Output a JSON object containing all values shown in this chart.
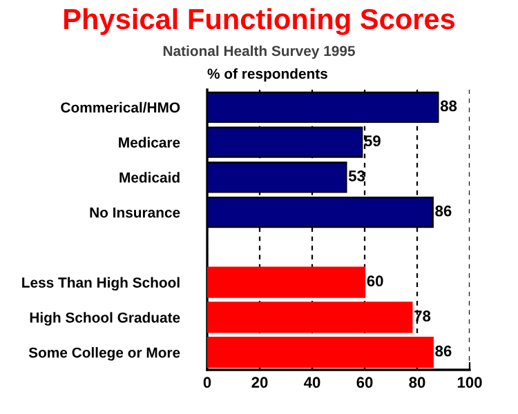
{
  "chart_data": {
    "type": "bar",
    "orientation": "horizontal",
    "title": "Physical Functioning Scores",
    "subtitle": "National Health Survey 1995",
    "xlabel": "% of respondents",
    "categories": [
      "Commerical/HMO",
      "Medicare",
      "Medicaid",
      "No Insurance",
      null,
      "Less Than High School",
      "High School Graduate",
      "Some College or More"
    ],
    "values": [
      88,
      59,
      53,
      86,
      null,
      60,
      78,
      86
    ],
    "colors": [
      "#000080",
      "#000080",
      "#000080",
      "#000080",
      "#000080",
      "#ff0000",
      "#ff0000",
      "#ff0000"
    ],
    "xlim": [
      0,
      100
    ],
    "xticks": [
      0,
      20,
      40,
      60,
      80,
      100
    ],
    "grid": "x",
    "data_labels": true
  }
}
